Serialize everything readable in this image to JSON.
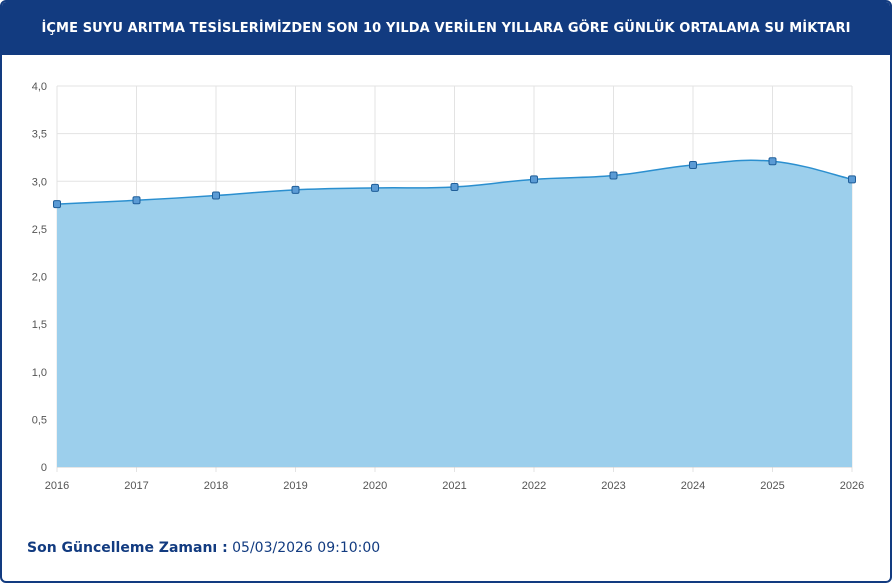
{
  "chart_data": {
    "type": "area",
    "title": "İÇME SUYU ARITMA TESİSLERİMİZDEN SON 10 YILDA VERİLEN YILLARA GÖRE GÜNLÜK ORTALAMA SU MİKTARI",
    "categories": [
      "2016",
      "2017",
      "2018",
      "2019",
      "2020",
      "2021",
      "2022",
      "2023",
      "2024",
      "2025",
      "2026"
    ],
    "values": [
      2.76,
      2.8,
      2.85,
      2.91,
      2.93,
      2.94,
      3.02,
      3.06,
      3.17,
      3.21,
      3.02
    ],
    "color": "#9ccfec",
    "line_color": "#2b8fcf",
    "ylim": [
      0,
      4
    ],
    "yticks": [
      0,
      {
        "value": 0.5,
        "label": "0,5"
      },
      {
        "value": 1,
        "label": "1,0"
      },
      {
        "value": 1.5,
        "label": "1,5"
      },
      {
        "value": 2,
        "label": "2,0"
      },
      {
        "value": 2.5,
        "label": "2,5"
      },
      {
        "value": 3,
        "label": "3,0"
      },
      {
        "value": 3.5,
        "label": "3,5"
      },
      {
        "value": 4,
        "label": "4,0"
      }
    ],
    "grid": true
  },
  "footer": {
    "label": "Son Güncelleme Zamanı :",
    "value": "05/03/2026 09:10:00"
  }
}
